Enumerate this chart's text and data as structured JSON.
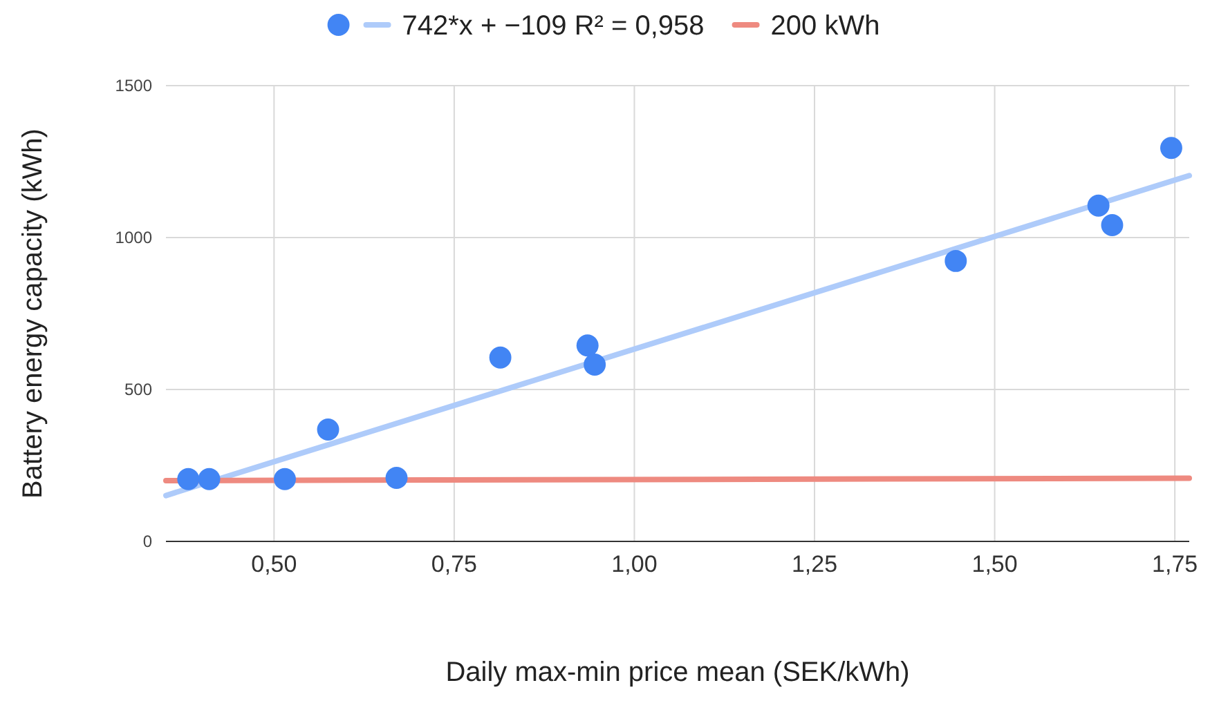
{
  "chart_data": {
    "type": "scatter",
    "xlabel": "Daily max-min price mean (SEK/kWh)",
    "ylabel": "Battery energy capacity (kWh)",
    "xlim": [
      0.35,
      1.77
    ],
    "ylim": [
      0,
      1500
    ],
    "xticks": [
      {
        "value": 0.5,
        "label": "0,50"
      },
      {
        "value": 0.75,
        "label": "0,75"
      },
      {
        "value": 1,
        "label": "1,00"
      },
      {
        "value": 1.25,
        "label": "1,25"
      },
      {
        "value": 1.5,
        "label": "1,50"
      },
      {
        "value": 1.75,
        "label": "1,75"
      }
    ],
    "yticks": [
      0,
      500,
      1000,
      1500
    ],
    "grid": true,
    "legend": "top",
    "series": [
      {
        "type": "line",
        "name": "742*x + −109 R² = 0,958",
        "color": "#aecbfa",
        "x": [
          0.35,
          1.77
        ],
        "values": [
          151,
          1204
        ]
      },
      {
        "type": "line",
        "name": "200 kWh",
        "color": "#ee8a80",
        "x": [
          0.35,
          1.77
        ],
        "values": [
          200,
          208
        ]
      },
      {
        "marker": "circle",
        "color": "#4285f4",
        "x": [
          0.381,
          0.41,
          0.515,
          0.575,
          0.67,
          0.814,
          0.935,
          0.945,
          1.446,
          1.644,
          1.663,
          1.745
        ],
        "values": [
          205,
          205,
          205,
          368,
          209,
          605,
          645,
          582,
          923,
          1105,
          1041,
          1295
        ]
      }
    ]
  }
}
